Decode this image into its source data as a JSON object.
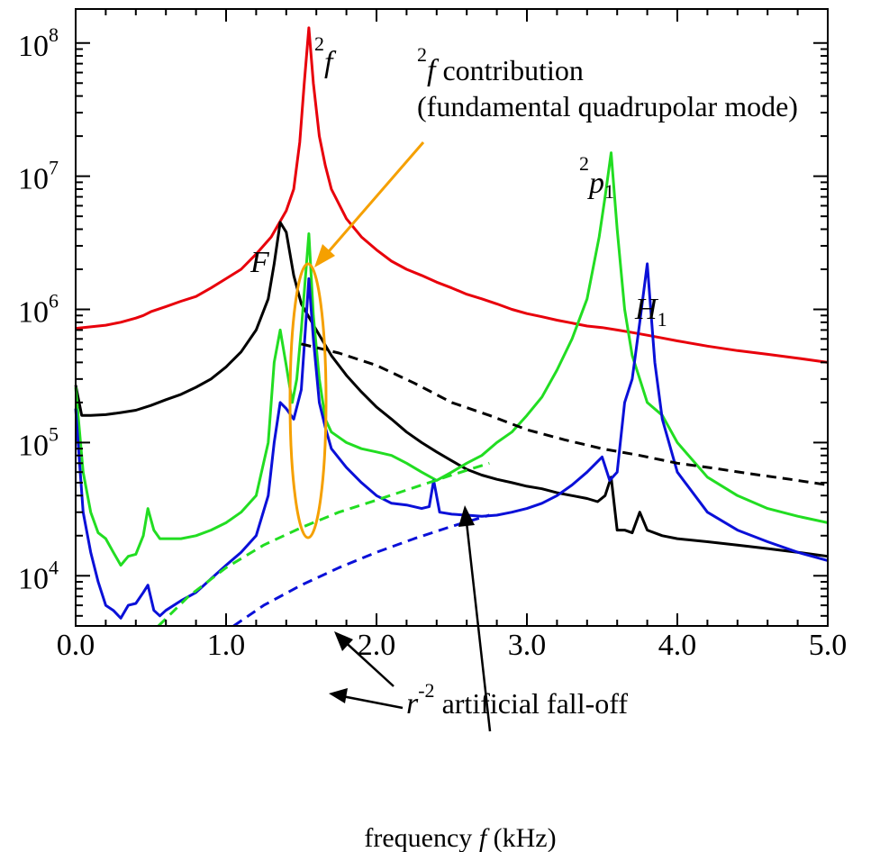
{
  "chart_data": {
    "type": "line",
    "title": "",
    "xlabel_prefix": "frequency ",
    "xlabel_var": "f",
    "xlabel_suffix": " (kHz)",
    "ylabel": "",
    "xlim": [
      0,
      5
    ],
    "ylim": [
      4200,
      180000000
    ],
    "yscale": "log",
    "grid": false,
    "x_ticks": [
      {
        "value": 0,
        "label": "0.0"
      },
      {
        "value": 1,
        "label": "1.0"
      },
      {
        "value": 2,
        "label": "2.0"
      },
      {
        "value": 3,
        "label": "3.0"
      },
      {
        "value": 4,
        "label": "4.0"
      },
      {
        "value": 5,
        "label": "5.0"
      }
    ],
    "y_ticks": [
      {
        "value": 10000,
        "base": "10",
        "exp": "4"
      },
      {
        "value": 100000,
        "base": "10",
        "exp": "5"
      },
      {
        "value": 1000000,
        "base": "10",
        "exp": "6"
      },
      {
        "value": 10000000,
        "base": "10",
        "exp": "7"
      },
      {
        "value": 100000000,
        "base": "10",
        "exp": "8"
      }
    ],
    "colors": {
      "red": "#e8000b",
      "black": "#000000",
      "green": "#22dd22",
      "blue": "#0a10d8",
      "orange": "#f5a000"
    },
    "series": [
      {
        "color": "red",
        "dashed": false,
        "points": [
          [
            0,
            720000
          ],
          [
            0.1,
            740000
          ],
          [
            0.2,
            760000
          ],
          [
            0.3,
            800000
          ],
          [
            0.4,
            860000
          ],
          [
            0.45,
            900000
          ],
          [
            0.5,
            960000
          ],
          [
            0.6,
            1050000
          ],
          [
            0.7,
            1150000
          ],
          [
            0.8,
            1250000
          ],
          [
            0.9,
            1450000
          ],
          [
            1.0,
            1700000
          ],
          [
            1.1,
            2000000
          ],
          [
            1.2,
            2600000
          ],
          [
            1.3,
            3500000
          ],
          [
            1.4,
            5500000
          ],
          [
            1.45,
            8000000
          ],
          [
            1.49,
            18000000
          ],
          [
            1.52,
            50000000
          ],
          [
            1.55,
            130000000
          ],
          [
            1.58,
            50000000
          ],
          [
            1.62,
            20000000
          ],
          [
            1.66,
            12000000
          ],
          [
            1.7,
            8000000
          ],
          [
            1.8,
            4800000
          ],
          [
            1.9,
            3500000
          ],
          [
            2.0,
            2800000
          ],
          [
            2.1,
            2300000
          ],
          [
            2.2,
            2000000
          ],
          [
            2.3,
            1800000
          ],
          [
            2.4,
            1600000
          ],
          [
            2.5,
            1450000
          ],
          [
            2.6,
            1300000
          ],
          [
            2.7,
            1200000
          ],
          [
            2.8,
            1100000
          ],
          [
            2.9,
            1000000
          ],
          [
            3.0,
            930000
          ],
          [
            3.1,
            880000
          ],
          [
            3.2,
            830000
          ],
          [
            3.3,
            790000
          ],
          [
            3.4,
            750000
          ],
          [
            3.5,
            730000
          ],
          [
            3.6,
            700000
          ],
          [
            3.7,
            670000
          ],
          [
            3.8,
            640000
          ],
          [
            3.9,
            610000
          ],
          [
            4.0,
            580000
          ],
          [
            4.2,
            530000
          ],
          [
            4.4,
            490000
          ],
          [
            4.6,
            460000
          ],
          [
            4.8,
            430000
          ],
          [
            5.0,
            400000
          ]
        ]
      },
      {
        "color": "black",
        "dashed": false,
        "points": [
          [
            0,
            270000
          ],
          [
            0.04,
            160000
          ],
          [
            0.1,
            160000
          ],
          [
            0.2,
            162000
          ],
          [
            0.3,
            168000
          ],
          [
            0.4,
            175000
          ],
          [
            0.5,
            190000
          ],
          [
            0.6,
            210000
          ],
          [
            0.7,
            230000
          ],
          [
            0.8,
            260000
          ],
          [
            0.9,
            300000
          ],
          [
            1.0,
            370000
          ],
          [
            1.1,
            480000
          ],
          [
            1.2,
            700000
          ],
          [
            1.28,
            1200000
          ],
          [
            1.32,
            2200000
          ],
          [
            1.36,
            4500000
          ],
          [
            1.4,
            3800000
          ],
          [
            1.45,
            1800000
          ],
          [
            1.5,
            1100000
          ],
          [
            1.6,
            700000
          ],
          [
            1.7,
            450000
          ],
          [
            1.8,
            320000
          ],
          [
            1.9,
            240000
          ],
          [
            2.0,
            185000
          ],
          [
            2.1,
            150000
          ],
          [
            2.2,
            120000
          ],
          [
            2.3,
            100000
          ],
          [
            2.4,
            85000
          ],
          [
            2.5,
            73000
          ],
          [
            2.6,
            63000
          ],
          [
            2.7,
            57000
          ],
          [
            2.8,
            53000
          ],
          [
            2.9,
            50000
          ],
          [
            3.0,
            47000
          ],
          [
            3.1,
            45000
          ],
          [
            3.2,
            42000
          ],
          [
            3.3,
            40000
          ],
          [
            3.4,
            38000
          ],
          [
            3.47,
            36000
          ],
          [
            3.52,
            40000
          ],
          [
            3.56,
            55000
          ],
          [
            3.6,
            22000
          ],
          [
            3.65,
            22000
          ],
          [
            3.7,
            21000
          ],
          [
            3.75,
            30000
          ],
          [
            3.8,
            22000
          ],
          [
            3.9,
            20000
          ],
          [
            4.0,
            19000
          ],
          [
            4.2,
            18000
          ],
          [
            4.4,
            17000
          ],
          [
            4.6,
            16000
          ],
          [
            4.8,
            15000
          ],
          [
            5.0,
            14000
          ]
        ]
      },
      {
        "color": "green",
        "dashed": false,
        "points": [
          [
            0,
            260000
          ],
          [
            0.05,
            60000
          ],
          [
            0.1,
            30000
          ],
          [
            0.15,
            21000
          ],
          [
            0.2,
            19000
          ],
          [
            0.25,
            15000
          ],
          [
            0.3,
            12000
          ],
          [
            0.35,
            14000
          ],
          [
            0.4,
            14500
          ],
          [
            0.45,
            20000
          ],
          [
            0.48,
            32000
          ],
          [
            0.52,
            22000
          ],
          [
            0.56,
            19000
          ],
          [
            0.6,
            19000
          ],
          [
            0.7,
            19000
          ],
          [
            0.8,
            20000
          ],
          [
            0.9,
            22000
          ],
          [
            1.0,
            25000
          ],
          [
            1.1,
            30000
          ],
          [
            1.2,
            40000
          ],
          [
            1.28,
            100000
          ],
          [
            1.32,
            400000
          ],
          [
            1.36,
            700000
          ],
          [
            1.4,
            380000
          ],
          [
            1.44,
            200000
          ],
          [
            1.47,
            300000
          ],
          [
            1.5,
            700000
          ],
          [
            1.55,
            3700000
          ],
          [
            1.58,
            900000
          ],
          [
            1.62,
            300000
          ],
          [
            1.66,
            150000
          ],
          [
            1.7,
            120000
          ],
          [
            1.8,
            100000
          ],
          [
            1.9,
            90000
          ],
          [
            2.0,
            85000
          ],
          [
            2.1,
            80000
          ],
          [
            2.2,
            70000
          ],
          [
            2.3,
            60000
          ],
          [
            2.4,
            52000
          ],
          [
            2.5,
            60000
          ],
          [
            2.6,
            70000
          ],
          [
            2.7,
            80000
          ],
          [
            2.8,
            100000
          ],
          [
            2.9,
            120000
          ],
          [
            3.0,
            160000
          ],
          [
            3.1,
            220000
          ],
          [
            3.2,
            350000
          ],
          [
            3.3,
            600000
          ],
          [
            3.4,
            1200000
          ],
          [
            3.48,
            3500000
          ],
          [
            3.52,
            7000000
          ],
          [
            3.56,
            15000000
          ],
          [
            3.6,
            4000000
          ],
          [
            3.65,
            1000000
          ],
          [
            3.7,
            450000
          ],
          [
            3.75,
            300000
          ],
          [
            3.8,
            200000
          ],
          [
            3.9,
            160000
          ],
          [
            4.0,
            100000
          ],
          [
            4.2,
            55000
          ],
          [
            4.4,
            40000
          ],
          [
            4.6,
            32000
          ],
          [
            4.8,
            28000
          ],
          [
            5.0,
            25000
          ]
        ]
      },
      {
        "color": "blue",
        "dashed": false,
        "points": [
          [
            0,
            180000
          ],
          [
            0.05,
            30000
          ],
          [
            0.1,
            15000
          ],
          [
            0.15,
            9000
          ],
          [
            0.2,
            6000
          ],
          [
            0.25,
            5500
          ],
          [
            0.3,
            4800
          ],
          [
            0.35,
            6000
          ],
          [
            0.4,
            6200
          ],
          [
            0.45,
            7500
          ],
          [
            0.48,
            8500
          ],
          [
            0.52,
            5500
          ],
          [
            0.56,
            5000
          ],
          [
            0.6,
            5500
          ],
          [
            0.7,
            6500
          ],
          [
            0.8,
            7500
          ],
          [
            0.9,
            9500
          ],
          [
            1.0,
            12000
          ],
          [
            1.1,
            15000
          ],
          [
            1.2,
            20000
          ],
          [
            1.28,
            40000
          ],
          [
            1.32,
            100000
          ],
          [
            1.36,
            200000
          ],
          [
            1.4,
            180000
          ],
          [
            1.45,
            150000
          ],
          [
            1.5,
            250000
          ],
          [
            1.55,
            1700000
          ],
          [
            1.58,
            600000
          ],
          [
            1.62,
            200000
          ],
          [
            1.66,
            130000
          ],
          [
            1.7,
            90000
          ],
          [
            1.8,
            65000
          ],
          [
            1.9,
            50000
          ],
          [
            2.0,
            40000
          ],
          [
            2.1,
            35000
          ],
          [
            2.2,
            34000
          ],
          [
            2.3,
            32000
          ],
          [
            2.35,
            33000
          ],
          [
            2.38,
            52000
          ],
          [
            2.42,
            30000
          ],
          [
            2.5,
            29000
          ],
          [
            2.6,
            28500
          ],
          [
            2.7,
            28000
          ],
          [
            2.8,
            28500
          ],
          [
            2.9,
            30000
          ],
          [
            3.0,
            32000
          ],
          [
            3.1,
            35000
          ],
          [
            3.2,
            40000
          ],
          [
            3.3,
            48000
          ],
          [
            3.4,
            60000
          ],
          [
            3.5,
            78000
          ],
          [
            3.55,
            52000
          ],
          [
            3.6,
            60000
          ],
          [
            3.65,
            200000
          ],
          [
            3.7,
            300000
          ],
          [
            3.75,
            800000
          ],
          [
            3.8,
            2200000
          ],
          [
            3.85,
            400000
          ],
          [
            3.9,
            150000
          ],
          [
            4.0,
            60000
          ],
          [
            4.2,
            30000
          ],
          [
            4.4,
            22000
          ],
          [
            4.6,
            18000
          ],
          [
            4.8,
            15000
          ],
          [
            5.0,
            13000
          ]
        ]
      },
      {
        "color": "black",
        "dashed": true,
        "points": [
          [
            1.5,
            550000
          ],
          [
            1.75,
            470000
          ],
          [
            2.0,
            380000
          ],
          [
            2.25,
            280000
          ],
          [
            2.5,
            200000
          ],
          [
            2.75,
            160000
          ],
          [
            3.0,
            125000
          ],
          [
            3.25,
            105000
          ],
          [
            3.5,
            90000
          ],
          [
            3.75,
            80000
          ],
          [
            4.0,
            70000
          ],
          [
            4.25,
            64000
          ],
          [
            4.5,
            58000
          ],
          [
            4.75,
            53000
          ],
          [
            5.0,
            48000
          ]
        ]
      },
      {
        "color": "green",
        "dashed": true,
        "points": [
          [
            0.55,
            4200
          ],
          [
            0.75,
            7000
          ],
          [
            1.0,
            11500
          ],
          [
            1.25,
            17000
          ],
          [
            1.5,
            23000
          ],
          [
            1.75,
            30000
          ],
          [
            2.0,
            37000
          ],
          [
            2.25,
            46000
          ],
          [
            2.5,
            57000
          ],
          [
            2.75,
            70000
          ]
        ]
      },
      {
        "color": "blue",
        "dashed": true,
        "points": [
          [
            1.05,
            4200
          ],
          [
            1.25,
            6000
          ],
          [
            1.5,
            8500
          ],
          [
            1.75,
            11500
          ],
          [
            2.0,
            15000
          ],
          [
            2.25,
            19000
          ],
          [
            2.5,
            23500
          ],
          [
            2.75,
            28500
          ]
        ]
      }
    ],
    "annotations": {
      "peak_2f_sup": "2",
      "peak_2f_var": "f",
      "contrib_sup": "2",
      "contrib_var": "f",
      "contrib_text": " contribution",
      "contrib_line2": "(fundamental quadrupolar mode)",
      "peak_2p1_sup": "2",
      "peak_2p1_var": "p",
      "peak_2p1_sub": "1",
      "peak_F": "F",
      "peak_H1_var": "H",
      "peak_H1_sub": "1",
      "falloff_var": "r",
      "falloff_sup": "-2",
      "falloff_text": " artificial fall-off"
    }
  }
}
